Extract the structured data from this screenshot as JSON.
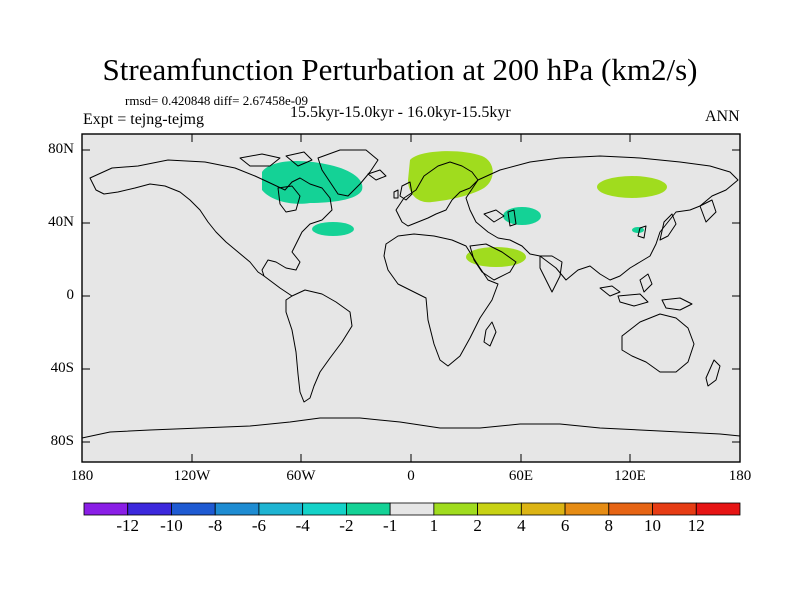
{
  "title": "Streamfunction Perturbation at 200 hPa (km2/s)",
  "stats_line": "rmsd= 0.420848 diff= 2.67458e-09",
  "period_line": "15.5kyr-15.0kyr - 16.0kyr-15.5kyr",
  "experiment_line": "Expt = tejng-tejmg",
  "season": "ANN",
  "y_axis_labels": [
    "80N",
    "40N",
    "0",
    "40S",
    "80S"
  ],
  "x_axis_labels": [
    "180",
    "120W",
    "60W",
    "0",
    "60E",
    "120E",
    "180"
  ],
  "colorbar": {
    "labels": [
      "-12",
      "-10",
      "-8",
      "-6",
      "-4",
      "-2",
      "-1",
      "1",
      "2",
      "4",
      "6",
      "8",
      "10",
      "12"
    ],
    "colors": [
      "#8a1ee6",
      "#3c28dc",
      "#1e5ad2",
      "#1e8cd2",
      "#1eb4d2",
      "#14d2c8",
      "#14d296",
      "#e6e6e6",
      "#a0dc1e",
      "#c8d214",
      "#dcb414",
      "#e68c14",
      "#e66414",
      "#e63c14",
      "#e61414"
    ]
  },
  "colors": {
    "background_fill": "#e6e6e6",
    "negative_small": "#14d296",
    "positive_small": "#a0dc1e"
  }
}
